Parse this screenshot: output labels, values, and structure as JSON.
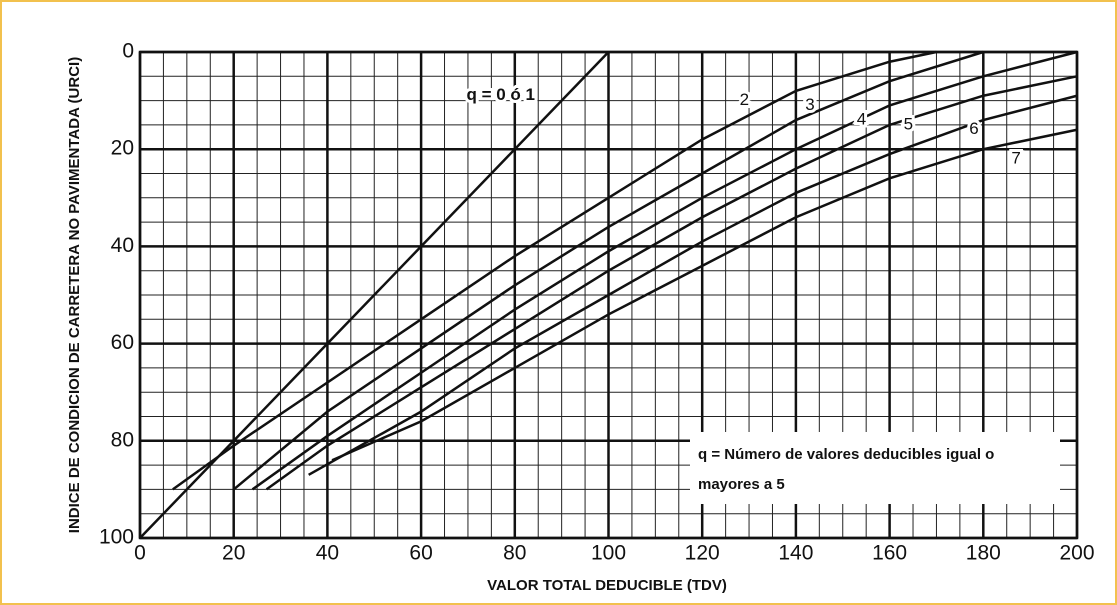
{
  "chart_data": {
    "type": "line",
    "xlabel": "VALOR TOTAL DEDUCIBLE (TDV)",
    "ylabel": "INDICE DE CONDICION DE CARRETERA NO PAVIMENTADA (URCI)",
    "xlim": [
      0,
      200
    ],
    "xticks": [
      0,
      20,
      40,
      60,
      80,
      100,
      120,
      140,
      160,
      180,
      200
    ],
    "ylim": [
      100,
      0
    ],
    "yticks": [
      0,
      20,
      40,
      60,
      80,
      100
    ],
    "grid": true,
    "minor_grid_step": 5,
    "annotation": [
      "q = Número de valores deducibles igual o",
      "mayores a 5"
    ],
    "series": [
      {
        "name": "q = 0 ó 1",
        "color": "#111111",
        "x": [
          0,
          100
        ],
        "values": [
          100,
          0
        ]
      },
      {
        "name": "2",
        "color": "#111111",
        "x": [
          7,
          20,
          40,
          60,
          80,
          100,
          120,
          140,
          160,
          170
        ],
        "values": [
          90,
          81,
          68,
          55,
          42,
          30,
          18,
          8,
          2,
          0
        ]
      },
      {
        "name": "3",
        "color": "#111111",
        "x": [
          20,
          40,
          60,
          80,
          100,
          120,
          140,
          160,
          180
        ],
        "values": [
          90,
          74,
          61,
          48,
          36,
          25,
          14,
          6,
          0
        ]
      },
      {
        "name": "4",
        "color": "#111111",
        "x": [
          24,
          40,
          60,
          80,
          100,
          120,
          140,
          160,
          180,
          200
        ],
        "values": [
          90,
          79,
          66,
          53,
          41,
          30,
          20,
          11,
          5,
          0
        ]
      },
      {
        "name": "5",
        "color": "#111111",
        "x": [
          27,
          40,
          60,
          80,
          100,
          120,
          140,
          160,
          180,
          200
        ],
        "values": [
          90,
          81,
          69,
          57,
          45,
          34,
          24,
          15,
          9,
          5
        ]
      },
      {
        "name": "6",
        "color": "#111111",
        "x": [
          36,
          60,
          80,
          100,
          120,
          140,
          160,
          180,
          200
        ],
        "values": [
          87,
          74,
          61,
          50,
          39,
          29,
          21,
          14,
          9
        ]
      },
      {
        "name": "7",
        "color": "#111111",
        "x": [
          41,
          60,
          80,
          100,
          120,
          140,
          160,
          180,
          200
        ],
        "values": [
          84,
          76,
          65,
          54,
          44,
          34,
          26,
          20,
          16
        ]
      }
    ]
  }
}
